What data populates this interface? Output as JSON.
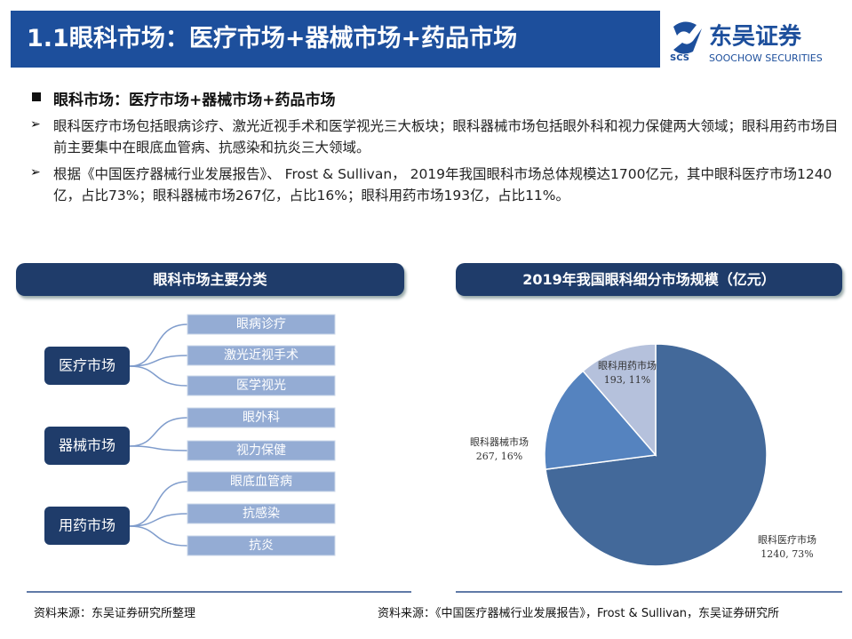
{
  "header": {
    "title": "1.1眼科市场：医疗市场+器械市场+药品市场",
    "logo_mark": "SCS",
    "logo_name": "东吴证券",
    "logo_en": "SOOCHOW SECURITIES"
  },
  "heading": "眼科市场：医疗市场+器械市场+药品市场",
  "bullets": [
    "眼科医疗市场包括眼病诊疗、激光近视手术和医学视光三大板块；眼科器械市场包括眼外科和视力保健两大领域；眼科用药市场目前主要集中在眼底血管病、抗感染和抗炎三大领域。",
    "根据《中国医疗器械行业发展报告》、 Frost & Sullivan， 2019年我国眼科市场总体规模达1700亿元，其中眼科医疗市场1240亿，占比73%；眼科器械市场267亿，占比16%；眼科用药市场193亿，占比11%。"
  ],
  "diagram": {
    "title": "眼科市场主要分类",
    "groups": [
      {
        "label": "医疗市场",
        "items": [
          "眼病诊疗",
          "激光近视手术",
          "医学视光"
        ]
      },
      {
        "label": "器械市场",
        "items": [
          "眼外科",
          "视力保健"
        ]
      },
      {
        "label": "用药市场",
        "items": [
          "眼底血管病",
          "抗感染",
          "抗炎"
        ]
      }
    ],
    "source": "资料来源：东吴证券研究所整理"
  },
  "chart_data": {
    "type": "pie",
    "title": "2019年我国眼科细分市场规模（亿元）",
    "categories": [
      "眼科医疗市场",
      "眼科器械市场",
      "眼科用药市场"
    ],
    "values": [
      1240,
      267,
      193
    ],
    "value_labels": [
      "1240, 73%",
      "267, 16%",
      "193, 11%"
    ],
    "colors": [
      "#43699a",
      "#5583bf",
      "#b5c1dc"
    ],
    "source": "资料来源：《中国医疗器械行业发展报告》，Frost & Sullivan，东吴证券研究所"
  }
}
